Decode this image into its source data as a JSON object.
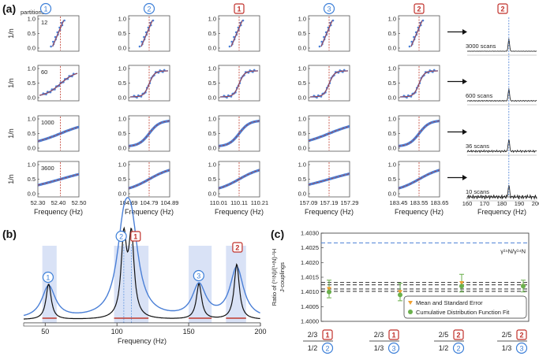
{
  "panel_labels": {
    "a": "(a)",
    "b": "(b)",
    "c": "(c)"
  },
  "panel_a": {
    "partitions_label": "partitions",
    "partitions": [
      "12",
      "60",
      "1000",
      "3600"
    ],
    "ylabel": "1/n",
    "xlabel": "Frequency (Hz)",
    "yticks": [
      "0.0",
      "0.5",
      "1.0"
    ],
    "columns": [
      {
        "badge": "1",
        "badge_style": "circle",
        "xticks": [
          "52.30",
          "52.40",
          "52.50"
        ]
      },
      {
        "badge": "2",
        "badge_style": "circle",
        "xticks": [
          "104.69",
          "104.79",
          "104.89"
        ]
      },
      {
        "badge": "1",
        "badge_style": "square",
        "xticks": [
          "110.01",
          "110.11",
          "110.21"
        ]
      },
      {
        "badge": "3",
        "badge_style": "circle",
        "xticks": [
          "157.09",
          "157.19",
          "157.29"
        ]
      },
      {
        "badge": "2",
        "badge_style": "square",
        "xticks": [
          "183.45",
          "183.55",
          "183.65"
        ]
      }
    ],
    "spectrum_column": {
      "badge": "2",
      "badge_style": "square",
      "scans": [
        "3000 scans",
        "600 scans",
        "36 scans",
        "10 scans"
      ],
      "xticks": [
        "160",
        "170",
        "180",
        "190",
        "200"
      ]
    }
  },
  "panel_b": {
    "xlabel": "Frequency (Hz)",
    "xticks": [
      "50",
      "100",
      "150",
      "200"
    ],
    "badges": [
      {
        "text": "1",
        "style": "circle"
      },
      {
        "text": "2",
        "style": "circle"
      },
      {
        "text": "1",
        "style": "square"
      },
      {
        "text": "3",
        "style": "circle"
      },
      {
        "text": "2",
        "style": "square"
      }
    ]
  },
  "panel_c": {
    "ylabel_line1": "Ratio of (¹⁵N)/(¹⁴N)-¹H",
    "ylabel_line2": "J-couplings",
    "yticks": [
      "1.4000",
      "1.4005",
      "1.4010",
      "1.4015",
      "1.4020",
      "1.4025",
      "1.4030"
    ],
    "gamma_label": "γ¹⁵N/γ¹⁴N",
    "legend": [
      "Mean and Standard Error",
      "Cumulative Distribution Function Fit"
    ],
    "xgroups": [
      {
        "top": "2/3",
        "top_badge": "1",
        "bottom": "1/2",
        "bottom_badge": "2"
      },
      {
        "top": "2/3",
        "top_badge": "1",
        "bottom": "1/3",
        "bottom_badge": "3"
      },
      {
        "top": "2/5",
        "top_badge": "2",
        "bottom": "1/2",
        "bottom_badge": "2"
      },
      {
        "top": "2/5",
        "top_badge": "2",
        "bottom": "1/3",
        "bottom_badge": "3"
      }
    ]
  },
  "chart_data": {
    "type": "scatter",
    "title": "Ratio of (15N)/(14N)-1H J-couplings",
    "categories": [
      "2/3 ① : 1/2 ②",
      "2/3 ① : 1/3 ③",
      "2/5 ② : 1/2 ②",
      "2/5 ② : 1/3 ③"
    ],
    "series": [
      {
        "name": "Mean and Standard Error",
        "values": [
          1.4011,
          1.401,
          1.4013,
          1.4012
        ],
        "errors": [
          0.0003,
          0.0003,
          0.0003,
          0.0002
        ]
      },
      {
        "name": "Cumulative Distribution Function Fit",
        "values": [
          1.401,
          1.4009,
          1.4012,
          1.4012
        ]
      }
    ],
    "reference_line": {
      "name": "γ15N/γ14N",
      "value": 1.40267
    },
    "ylim": [
      1.4,
      1.403
    ],
    "xlabel": "",
    "ylabel": "Ratio of (15N)/(14N)-1H J-couplings"
  },
  "colors": {
    "blue_fit": "#4a7fd6",
    "red": "#c0392b",
    "green": "#6ab04c",
    "orange": "#f0a030",
    "badge_blue": "#3c7fd8",
    "badge_red": "#c0302a",
    "fill_blue": "#c9d6f2"
  }
}
